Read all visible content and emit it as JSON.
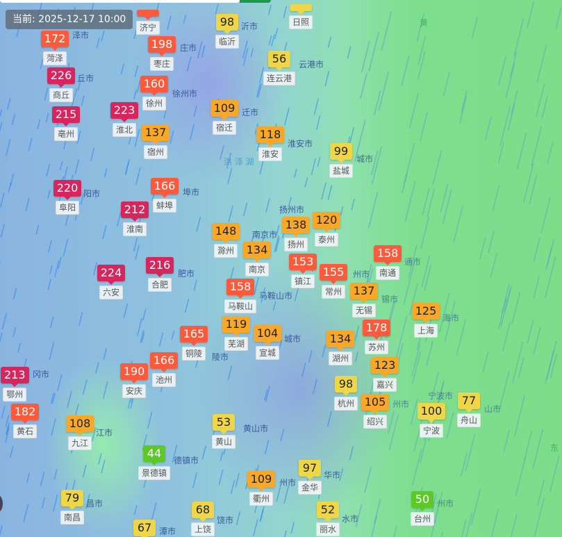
{
  "timestamp": "当前: 2025-12-17 10:00",
  "aqi_colors": {
    "good": "#5cc929",
    "moderate": "#eed646",
    "usg": "#f8a826",
    "unhealthy": "#fc5a3c",
    "very_unhealthy": "#d7265d"
  },
  "place_labels": [
    "泽市",
    "沂市",
    "庄市",
    "云港市",
    "丘市",
    "徐州市",
    "迁市",
    "淮安市",
    "城市",
    "阳市",
    "埠市",
    "扬州市",
    "南京市",
    "通市",
    "肥市",
    "马鞍山市",
    "州市",
    "锡市",
    "海市",
    "陵市",
    "城市",
    "州市",
    "德镇市",
    "昌市",
    "州市",
    "华市",
    "饶市",
    "潭市",
    "水市",
    "州市",
    "山市",
    "黄山市",
    "江市",
    "冈市",
    "宁波市"
  ],
  "water_labels": [
    "洪 泽 湖",
    "黄",
    "东"
  ],
  "stations": [
    {
      "name": "菏泽",
      "aqi": "172"
    },
    {
      "name": "济宁",
      "aqi": ""
    },
    {
      "name": "日照",
      "aqi": ""
    },
    {
      "name": "临沂",
      "aqi": "98"
    },
    {
      "name": "枣庄",
      "aqi": "198"
    },
    {
      "name": "连云港",
      "aqi": "56"
    },
    {
      "name": "商丘",
      "aqi": "226"
    },
    {
      "name": "徐州",
      "aqi": "160"
    },
    {
      "name": "淮北",
      "aqi": "223"
    },
    {
      "name": "亳州",
      "aqi": "215"
    },
    {
      "name": "宿迁",
      "aqi": "109"
    },
    {
      "name": "宿州",
      "aqi": "137"
    },
    {
      "name": "淮安",
      "aqi": "118"
    },
    {
      "name": "盐城",
      "aqi": "99"
    },
    {
      "name": "阜阳",
      "aqi": "220"
    },
    {
      "name": "蚌埠",
      "aqi": "166"
    },
    {
      "name": "淮南",
      "aqi": "212"
    },
    {
      "name": "滁州",
      "aqi": "148"
    },
    {
      "name": "扬州",
      "aqi": "138"
    },
    {
      "name": "泰州",
      "aqi": "120"
    },
    {
      "name": "镇江",
      "aqi": "153"
    },
    {
      "name": "南京",
      "aqi": "134"
    },
    {
      "name": "南通",
      "aqi": "158"
    },
    {
      "name": "六安",
      "aqi": "224"
    },
    {
      "name": "合肥",
      "aqi": "216"
    },
    {
      "name": "马鞍山",
      "aqi": "158"
    },
    {
      "name": "常州",
      "aqi": "155"
    },
    {
      "name": "无锡",
      "aqi": "137"
    },
    {
      "name": "苏州",
      "aqi": "178"
    },
    {
      "name": "芜湖",
      "aqi": "119"
    },
    {
      "name": "上海",
      "aqi": "125"
    },
    {
      "name": "铜陵",
      "aqi": "165"
    },
    {
      "name": "宣城",
      "aqi": "104"
    },
    {
      "name": "湖州",
      "aqi": "134"
    },
    {
      "name": "嘉兴",
      "aqi": "123"
    },
    {
      "name": "池州",
      "aqi": "166"
    },
    {
      "name": "安庆",
      "aqi": "190"
    },
    {
      "name": "鄂州",
      "aqi": "213"
    },
    {
      "name": "黄石",
      "aqi": "182"
    },
    {
      "name": "杭州",
      "aqi": "98"
    },
    {
      "name": "绍兴",
      "aqi": "105"
    },
    {
      "name": "舟山",
      "aqi": "77"
    },
    {
      "name": "宁波",
      "aqi": "100"
    },
    {
      "name": "九江",
      "aqi": "108"
    },
    {
      "name": "黄山",
      "aqi": "53"
    },
    {
      "name": "景德镇",
      "aqi": "44"
    },
    {
      "name": "金华",
      "aqi": "97"
    },
    {
      "name": "衢州",
      "aqi": "109"
    },
    {
      "name": "南昌",
      "aqi": "79"
    },
    {
      "name": "台州",
      "aqi": "50"
    },
    {
      "name": "上饶",
      "aqi": "68"
    },
    {
      "name": "丽水",
      "aqi": "52"
    },
    {
      "name": "",
      "aqi": "67"
    }
  ]
}
